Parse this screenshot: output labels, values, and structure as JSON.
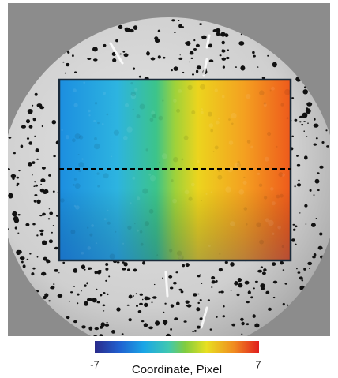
{
  "colorbar": {
    "min": -7,
    "max": 7,
    "label": "Coordinate, Pixel"
  }
}
